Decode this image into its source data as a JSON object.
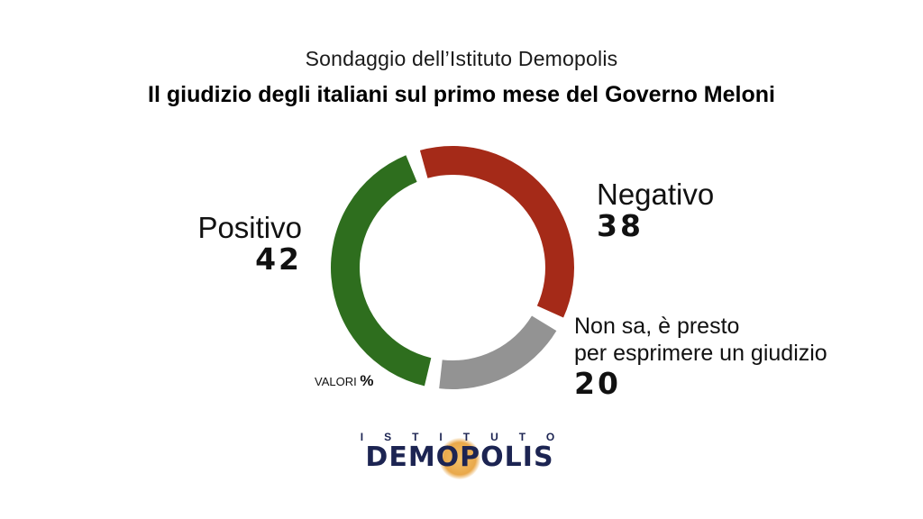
{
  "header": {
    "subtitle": "Sondaggio dell’Istituto Demopolis",
    "title": "Il giudizio degli italiani sul primo mese del Governo Meloni"
  },
  "unit_note": {
    "text": "VALORI",
    "symbol": "%"
  },
  "labels": {
    "positive": {
      "name": "Positivo",
      "value": "42"
    },
    "negative": {
      "name": "Negativo",
      "value": "38"
    },
    "unsure": {
      "line1": "Non sa, è presto",
      "line2": "per esprimere un giudizio",
      "value": "20"
    }
  },
  "logo": {
    "top": "ISTITUTO",
    "word": "DEMOPOLIS"
  },
  "chart_data": {
    "type": "pie",
    "style": "donut",
    "title": "Il giudizio degli italiani sul primo mese del Governo Meloni",
    "unit": "%",
    "categories": [
      "Positivo",
      "Negativo",
      "Non sa, è presto per esprimere un giudizio"
    ],
    "values": [
      42,
      38,
      20
    ],
    "colors": [
      "#2e6e1e",
      "#a52a18",
      "#939393"
    ]
  }
}
